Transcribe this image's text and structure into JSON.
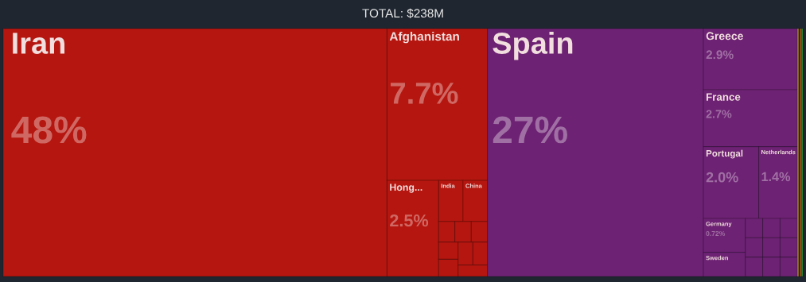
{
  "chart_data": {
    "type": "other",
    "title": "TOTAL: $238M",
    "categories": [
      "Iran",
      "Afghanistan",
      "Hong...",
      "India",
      "China",
      null,
      null,
      null,
      null,
      null,
      null,
      null,
      null,
      "Spain",
      "Greece",
      "France",
      "Portugal",
      "Netherlands",
      "Germany",
      "Sweden",
      null,
      null,
      null,
      null,
      null,
      null,
      null,
      null,
      null,
      null,
      null,
      null,
      null
    ],
    "values": [
      48,
      7.7,
      2.5,
      null,
      null,
      null,
      null,
      null,
      null,
      null,
      null,
      null,
      null,
      27,
      2.9,
      2.7,
      2.0,
      1.4,
      0.72,
      null,
      null,
      null,
      null,
      null,
      null,
      null,
      null,
      null,
      null,
      null,
      null,
      null,
      null
    ],
    "value_labels": [
      "48%",
      "7.7%",
      "2.5%",
      null,
      null,
      null,
      null,
      null,
      null,
      null,
      null,
      null,
      null,
      "27%",
      "2.9%",
      "2.7%",
      "2.0%",
      "1.4%",
      "0.72%",
      null,
      null,
      null,
      null,
      null,
      null,
      null,
      null,
      null,
      null,
      null,
      null,
      null,
      null
    ],
    "colors": [
      "#b5160f",
      "#b5160f",
      "#b5160f",
      "#b5160f",
      "#b5160f",
      "#b5160f",
      "#b5160f",
      "#b5160f",
      "#b5160f",
      "#b5160f",
      "#b5160f",
      "#b5160f",
      "#b5160f",
      "#6d2273",
      "#6d2273",
      "#6d2273",
      "#6d2273",
      "#6d2273",
      "#6d2273",
      "#6d2273",
      "#6d2273",
      "#6d2273",
      "#6d2273",
      "#6d2273",
      "#6d2273",
      "#6d2273",
      "#6d2273",
      "#6d2273",
      "#6d2273",
      "#d4a418",
      "#1c1a7c",
      "#c8700f",
      "#2f8f3a"
    ]
  }
}
